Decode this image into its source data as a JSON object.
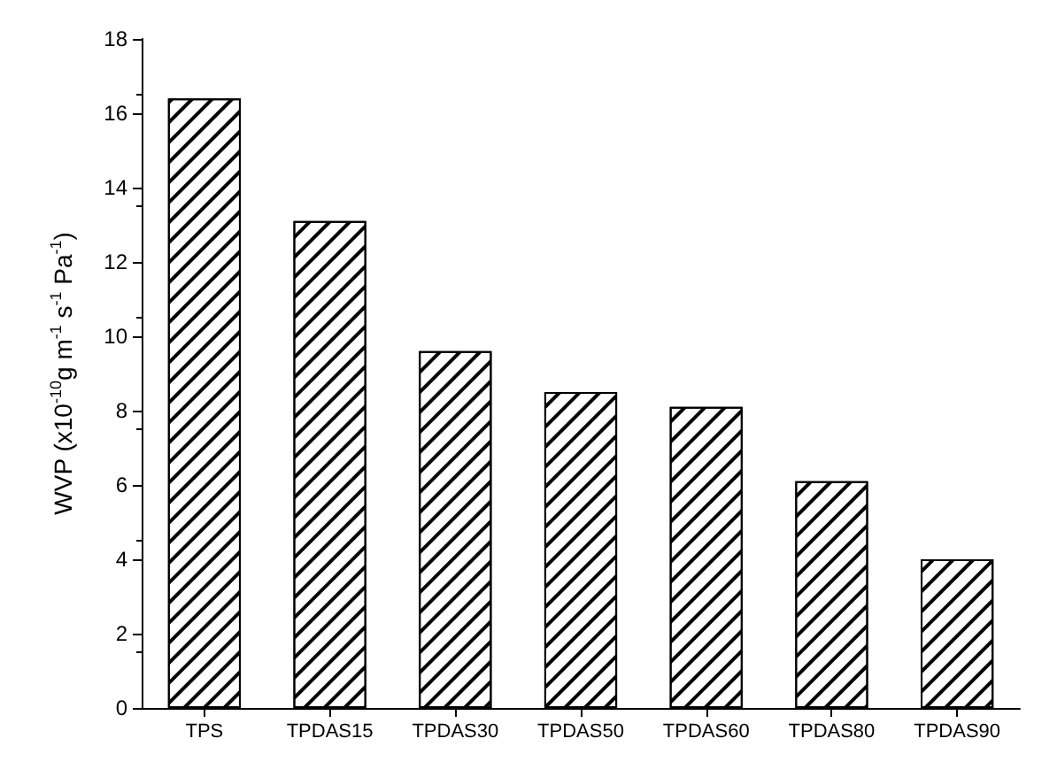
{
  "chart_data": {
    "type": "bar",
    "ylabel": "WVP (x10$^{-10}$g m$^{-1}$ s$^{-1}$ Pa$^{-1}$)",
    "categories": [
      "TPS",
      "TPDAS15",
      "TPDAS30",
      "TPDAS50",
      "TPDAS60",
      "TPDAS80",
      "TPDAS90"
    ],
    "values": [
      16.4,
      13.1,
      9.6,
      8.5,
      8.1,
      6.1,
      4.0
    ],
    "color": "#ffffff",
    "ylim": [
      0,
      18
    ],
    "yticks": [
      0,
      2,
      4,
      6,
      8,
      10,
      12,
      14,
      16,
      18
    ],
    "grid": false
  }
}
